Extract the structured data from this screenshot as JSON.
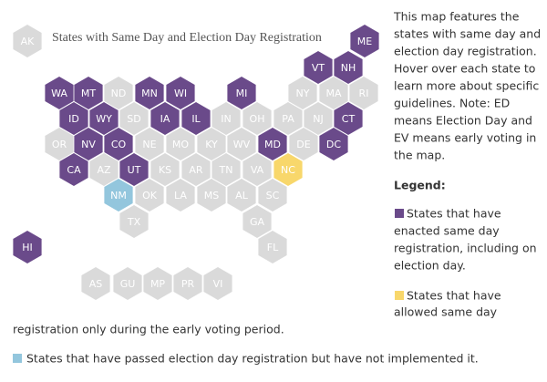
{
  "title": "States with Same Day and Election Day Registration",
  "colors": {
    "enacted": "#6a4a8a",
    "early_voting": "#f8d76b",
    "passed_not_implemented": "#93c6dd",
    "none": "#dadada"
  },
  "hexes": [
    {
      "label": "AK",
      "status": "none"
    },
    {
      "label": "ME",
      "status": "enacted"
    },
    {
      "label": "VT",
      "status": "enacted"
    },
    {
      "label": "NH",
      "status": "enacted"
    },
    {
      "label": "WA",
      "status": "enacted"
    },
    {
      "label": "MT",
      "status": "enacted"
    },
    {
      "label": "ND",
      "status": "none"
    },
    {
      "label": "MN",
      "status": "enacted"
    },
    {
      "label": "WI",
      "status": "enacted"
    },
    {
      "label": "MI",
      "status": "enacted"
    },
    {
      "label": "NY",
      "status": "none"
    },
    {
      "label": "MA",
      "status": "none"
    },
    {
      "label": "RI",
      "status": "none"
    },
    {
      "label": "ID",
      "status": "enacted"
    },
    {
      "label": "WY",
      "status": "enacted"
    },
    {
      "label": "SD",
      "status": "none"
    },
    {
      "label": "IA",
      "status": "enacted"
    },
    {
      "label": "IL",
      "status": "enacted"
    },
    {
      "label": "IN",
      "status": "none"
    },
    {
      "label": "OH",
      "status": "none"
    },
    {
      "label": "PA",
      "status": "none"
    },
    {
      "label": "NJ",
      "status": "none"
    },
    {
      "label": "CT",
      "status": "enacted"
    },
    {
      "label": "OR",
      "status": "none"
    },
    {
      "label": "NV",
      "status": "enacted"
    },
    {
      "label": "CO",
      "status": "enacted"
    },
    {
      "label": "NE",
      "status": "none"
    },
    {
      "label": "MO",
      "status": "none"
    },
    {
      "label": "KY",
      "status": "none"
    },
    {
      "label": "WV",
      "status": "none"
    },
    {
      "label": "MD",
      "status": "enacted"
    },
    {
      "label": "DE",
      "status": "none"
    },
    {
      "label": "DC",
      "status": "enacted"
    },
    {
      "label": "CA",
      "status": "enacted"
    },
    {
      "label": "AZ",
      "status": "none"
    },
    {
      "label": "UT",
      "status": "enacted"
    },
    {
      "label": "KS",
      "status": "none"
    },
    {
      "label": "AR",
      "status": "none"
    },
    {
      "label": "TN",
      "status": "none"
    },
    {
      "label": "VA",
      "status": "none"
    },
    {
      "label": "NC",
      "status": "early_voting"
    },
    {
      "label": "NM",
      "status": "passed_not_implemented"
    },
    {
      "label": "OK",
      "status": "none"
    },
    {
      "label": "LA",
      "status": "none"
    },
    {
      "label": "MS",
      "status": "none"
    },
    {
      "label": "AL",
      "status": "none"
    },
    {
      "label": "SC",
      "status": "none"
    },
    {
      "label": "TX",
      "status": "none"
    },
    {
      "label": "GA",
      "status": "none"
    },
    {
      "label": "HI",
      "status": "enacted"
    },
    {
      "label": "FL",
      "status": "none"
    },
    {
      "label": "AS",
      "status": "none"
    },
    {
      "label": "GU",
      "status": "none"
    },
    {
      "label": "MP",
      "status": "none"
    },
    {
      "label": "PR",
      "status": "none"
    },
    {
      "label": "VI",
      "status": "none"
    }
  ],
  "description": [
    "This map features the",
    "states with same day and",
    "election day registration.",
    "Hover over each state to",
    "learn more about specific",
    "guidelines. Note: ED",
    "means Election Day and",
    "EV means early voting in",
    "the map."
  ],
  "legend": {
    "heading": "Legend:",
    "items": [
      {
        "status": "enacted",
        "lines": [
          "States that have",
          "enacted same day",
          "registration, including on",
          "election day."
        ]
      },
      {
        "status": "early_voting",
        "lines": [
          "States that have",
          "allowed same day",
          "registration only during the early voting period."
        ]
      },
      {
        "status": "passed_not_implemented",
        "lines": [
          "States that have passed election day registration but have not implemented it."
        ]
      }
    ]
  }
}
